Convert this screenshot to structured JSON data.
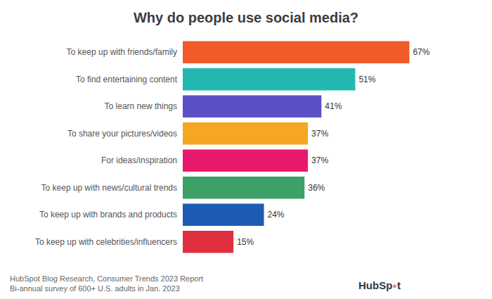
{
  "chart_data": {
    "type": "bar",
    "title": "Why do people use social media?",
    "categories": [
      "To keep up with celebrities/influencers",
      "To keep up with brands and products",
      "To keep up with news/cultural trends",
      "For ideas/inspiration",
      "To share your pictures/videos",
      "To learn new things",
      "To find entertaining content",
      "To keep up with friends/family"
    ],
    "values": [
      15,
      24,
      36,
      37,
      37,
      41,
      51,
      67
    ],
    "value_labels": [
      "15%",
      "24%",
      "36%",
      "37%",
      "37%",
      "41%",
      "51%",
      "67%"
    ],
    "colors": [
      "#E03040",
      "#1D5BB5",
      "#3DA066",
      "#E8196A",
      "#F5A623",
      "#5B50C8",
      "#22B8B0",
      "#F05A28"
    ],
    "orientation": "horizontal",
    "xlim": [
      0,
      80
    ],
    "data_labels": true,
    "tick_labels": "y",
    "grid": false,
    "annotations": [
      "HubSpot Blog Research, Consumer Trends 2023 Report",
      "Bi-annual survey of 600+ U.S. adults in Jan. 2023",
      "HubSp●t"
    ]
  }
}
